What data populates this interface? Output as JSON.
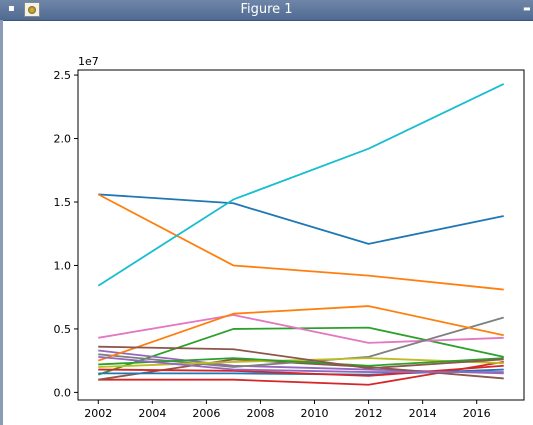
{
  "window": {
    "title": "Figure 1",
    "menu_icon": "menu-dot-icon",
    "app_icon": "figure-app-icon",
    "minimize_icon": "minimize-icon"
  },
  "chart_data": {
    "type": "line",
    "title": "",
    "xlabel": "",
    "ylabel": "",
    "offset_label": "1e7",
    "xlim": [
      2001.25,
      2017.75
    ],
    "ylim": [
      -0.06,
      2.54
    ],
    "x_ticks": [
      2002,
      2004,
      2006,
      2008,
      2010,
      2012,
      2014,
      2016
    ],
    "y_ticks": [
      0.0,
      0.5,
      1.0,
      1.5,
      2.0,
      2.5
    ],
    "y_tick_labels": [
      "0.0",
      "0.5",
      "1.0",
      "1.5",
      "2.0",
      "2.5"
    ],
    "grid": false,
    "x": [
      2002,
      2007,
      2012,
      2017
    ],
    "series": [
      {
        "color": "#1f77b4",
        "values": [
          1.56,
          1.49,
          1.17,
          1.39
        ]
      },
      {
        "color": "#ff7f0e",
        "values": [
          1.56,
          1.0,
          0.92,
          0.81
        ]
      },
      {
        "color": "#2ca02c",
        "values": [
          0.14,
          0.5,
          0.51,
          0.28
        ]
      },
      {
        "color": "#d62728",
        "values": [
          0.1,
          0.1,
          0.06,
          0.24
        ]
      },
      {
        "color": "#9467bd",
        "values": [
          0.33,
          0.21,
          0.18,
          0.15
        ]
      },
      {
        "color": "#8c564b",
        "values": [
          0.1,
          0.26,
          0.2,
          0.11
        ]
      },
      {
        "color": "#e377c2",
        "values": [
          0.43,
          0.61,
          0.39,
          0.43
        ]
      },
      {
        "color": "#7f7f7f",
        "values": [
          0.3,
          0.2,
          0.28,
          0.59
        ]
      },
      {
        "color": "#bcbd22",
        "values": [
          0.2,
          0.24,
          0.27,
          0.23
        ]
      },
      {
        "color": "#17becf",
        "values": [
          0.84,
          1.52,
          1.92,
          2.43
        ]
      },
      {
        "color": "#1f77b4",
        "values": [
          0.15,
          0.15,
          0.14,
          0.18
        ]
      },
      {
        "color": "#ff7f0e",
        "values": [
          0.25,
          0.62,
          0.68,
          0.45
        ]
      },
      {
        "color": "#2ca02c",
        "values": [
          0.22,
          0.27,
          0.21,
          0.27
        ]
      },
      {
        "color": "#d62728",
        "values": [
          0.18,
          0.17,
          0.13,
          0.21
        ]
      },
      {
        "color": "#9467bd",
        "values": [
          0.28,
          0.18,
          0.16,
          0.16
        ]
      },
      {
        "color": "#8c564b",
        "values": [
          0.36,
          0.34,
          0.19,
          0.26
        ]
      }
    ]
  }
}
